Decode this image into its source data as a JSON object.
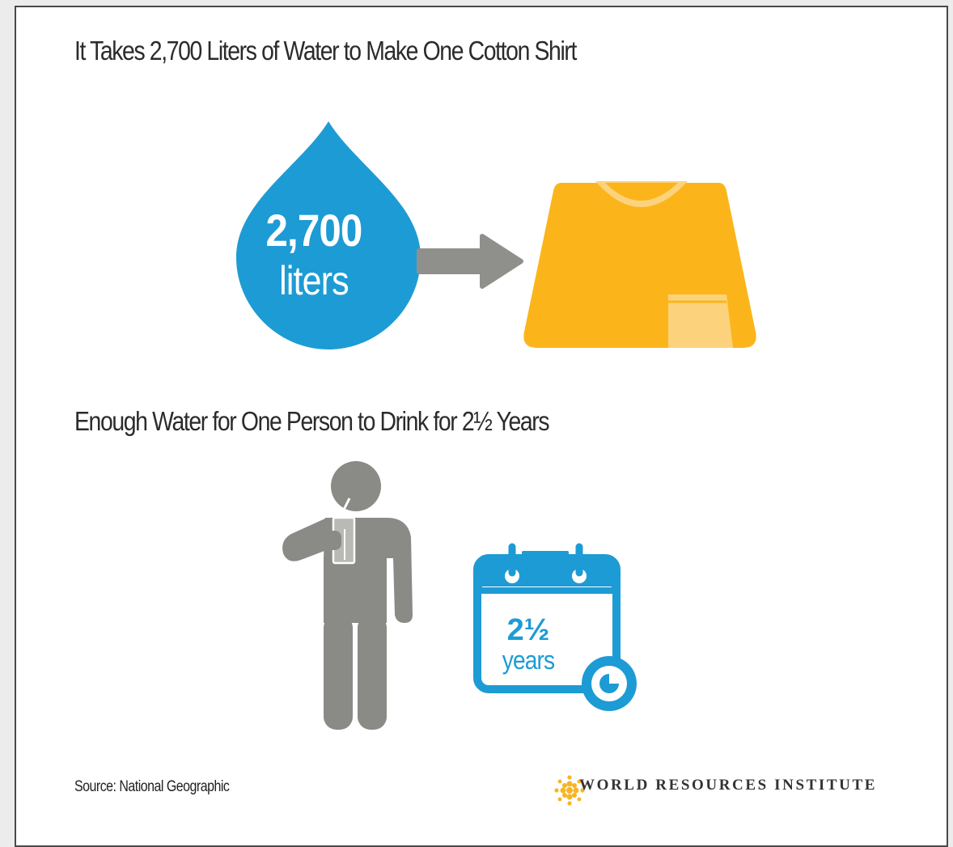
{
  "headings": {
    "top": "It Takes 2,700 Liters of Water to Make One Cotton Shirt",
    "bottom": "Enough Water for One Person to Drink for 2½ Years"
  },
  "drop": {
    "value": "2,700",
    "unit": "liters"
  },
  "calendar": {
    "value": "2½",
    "unit": "years"
  },
  "icons": {
    "water_drop": "water-drop-icon",
    "arrow": "right-arrow-icon",
    "shirt": "tshirt-icon",
    "person": "person-drinking-icon",
    "calendar": "calendar-icon",
    "clock": "clock-icon",
    "logo_mark": "wri-logo-icon"
  },
  "colors": {
    "drop_blue": "#1d9bd4",
    "shirt_yellow": "#fbb51b",
    "shirt_light": "#fdd27c",
    "figure_gray": "#8a8a86",
    "arrow_gray": "#8f908c"
  },
  "footer": {
    "source": "Source: National Geographic",
    "organization": "WORLD RESOURCES INSTITUTE"
  }
}
